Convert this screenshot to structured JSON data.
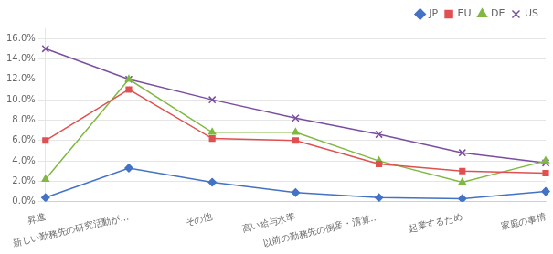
{
  "chart_data": {
    "type": "line",
    "categories": [
      "昇進",
      "新しい勤務先の研究活動が…",
      "その他",
      "高い給与水準",
      "以前の勤務先の倒産・清算…",
      "起業するため",
      "家庭の事情"
    ],
    "series": [
      {
        "name": "JP",
        "color": "#4472C4",
        "marker": "diamond",
        "values": [
          0.004,
          0.033,
          0.019,
          0.009,
          0.004,
          0.003,
          0.01
        ]
      },
      {
        "name": "EU",
        "color": "#E05050",
        "marker": "square",
        "values": [
          0.06,
          0.11,
          0.062,
          0.06,
          0.037,
          0.03,
          0.028
        ]
      },
      {
        "name": "DE",
        "color": "#7FB942",
        "marker": "triangle",
        "values": [
          0.022,
          0.12,
          0.068,
          0.068,
          0.04,
          0.019,
          0.04
        ]
      },
      {
        "name": "US",
        "color": "#7B4EA0",
        "marker": "x",
        "values": [
          0.15,
          0.12,
          0.1,
          0.082,
          0.066,
          0.048,
          0.038
        ]
      }
    ],
    "ylim": [
      0.0,
      0.17
    ],
    "yticks": [
      {
        "value": 0.0,
        "label": "0.0%"
      },
      {
        "value": 0.02,
        "label": "2.0%"
      },
      {
        "value": 0.04,
        "label": "4.0%"
      },
      {
        "value": 0.06,
        "label": "6.0%"
      },
      {
        "value": 0.08,
        "label": "8.0%"
      },
      {
        "value": 0.1,
        "label": "10.0%"
      },
      {
        "value": 0.12,
        "label": "12.0%"
      },
      {
        "value": 0.14,
        "label": "14.0%"
      },
      {
        "value": 0.16,
        "label": "16.0%"
      }
    ],
    "grid": true,
    "legend": "upper right"
  }
}
